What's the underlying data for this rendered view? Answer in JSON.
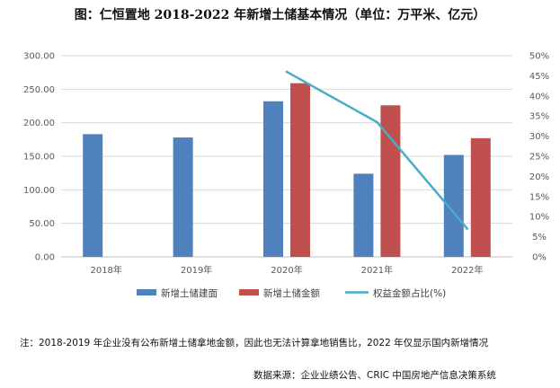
{
  "title": "图：仁恒置地 2018-2022 年新增土储基本情况（单位：万平米、亿元）",
  "note": "注：2018-2019 年企业没有公布新增土储拿地金额，因此也无法计算拿地销售比，2022 年仅显示国内新增情况",
  "source": "数据来源：企业业绩公告、CRIC 中国房地产信息决策系统",
  "colors": {
    "area": "#4F81BD",
    "amount": "#C0504D",
    "ratio": "#4BACC6",
    "grid": "#d9d9d9",
    "axis": "#bfbfbf"
  },
  "chart_data": {
    "type": "bar",
    "categories": [
      "2018年",
      "2019年",
      "2020年",
      "2021年",
      "2022年"
    ],
    "series": [
      {
        "name": "新增土储建面",
        "kind": "bar",
        "axis": "left",
        "values": [
          183,
          178,
          232,
          124,
          152
        ]
      },
      {
        "name": "新增土储金额",
        "kind": "bar",
        "axis": "left",
        "values": [
          null,
          null,
          259,
          226,
          177
        ]
      },
      {
        "name": "权益金额占比(%)",
        "kind": "line",
        "axis": "right",
        "values": [
          null,
          null,
          46,
          33.5,
          7
        ]
      }
    ],
    "y_left": {
      "min": 0,
      "max": 300,
      "step": 50,
      "ticks": [
        "0.00",
        "50.00",
        "100.00",
        "150.00",
        "200.00",
        "250.00",
        "300.00"
      ]
    },
    "y_right": {
      "min": 0,
      "max": 50,
      "step": 5,
      "ticks": [
        "0%",
        "5%",
        "10%",
        "15%",
        "20%",
        "25%",
        "30%",
        "35%",
        "40%",
        "45%",
        "50%"
      ]
    },
    "legend": "bottom",
    "grid": true
  }
}
